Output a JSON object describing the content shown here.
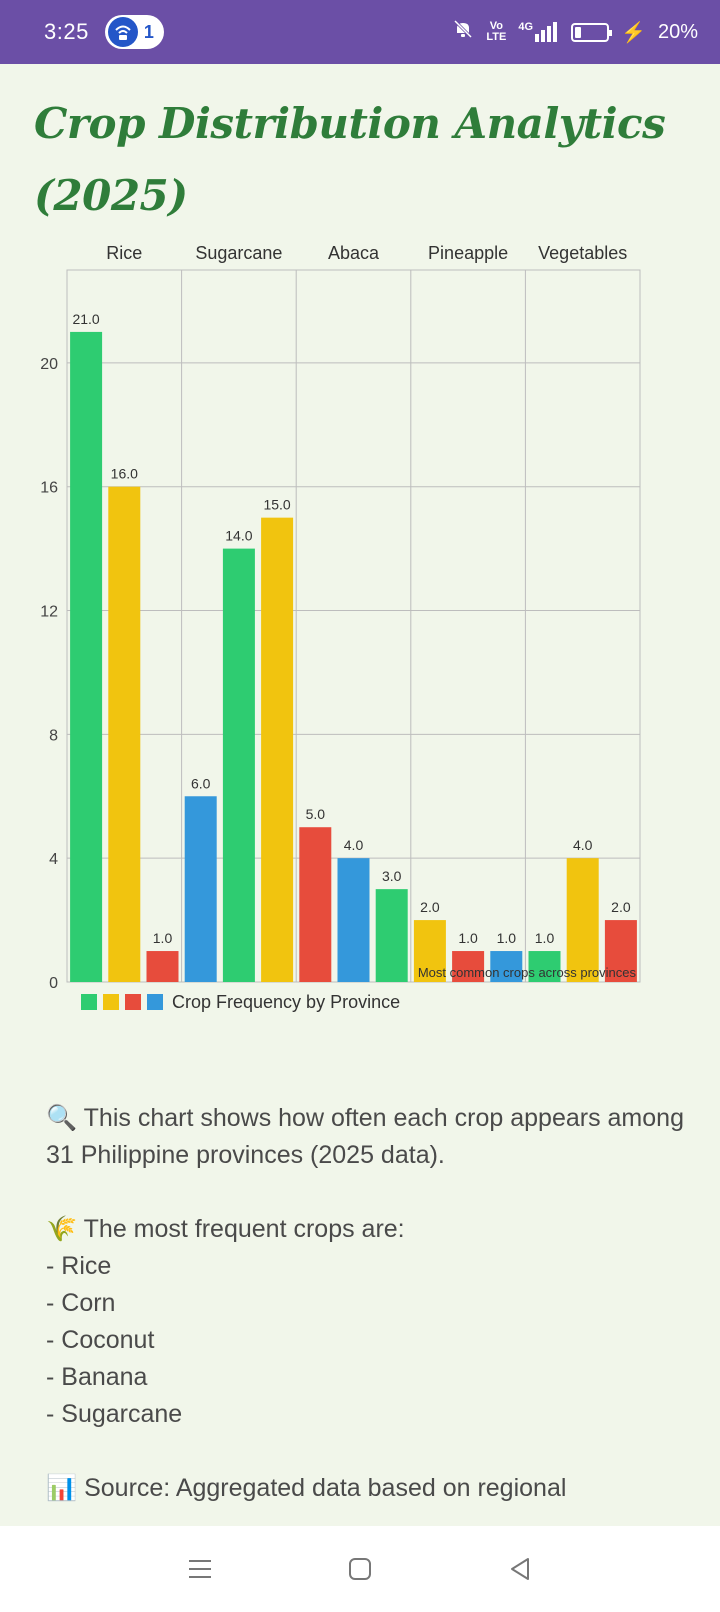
{
  "status_bar": {
    "time": "3:25",
    "badge_count": "1",
    "network_label_top": "Vo",
    "network_label_bottom": "LTE",
    "signal_label": "4G",
    "battery_percent": "20%",
    "battery_level": 0.2
  },
  "page": {
    "title": "Crop Distribution Analytics (2025)"
  },
  "chart_data": {
    "type": "bar",
    "top_labels": [
      "Rice",
      "Sugarcane",
      "Abaca",
      "Pineapple",
      "Vegetables"
    ],
    "values": [
      21.0,
      16.0,
      1.0,
      6.0,
      14.0,
      15.0,
      5.0,
      4.0,
      3.0,
      2.0,
      1.0,
      1.0,
      1.0,
      4.0,
      2.0
    ],
    "value_labels": [
      "21.0",
      "16.0",
      "1.0",
      "6.0",
      "14.0",
      "15.0",
      "5.0",
      "4.0",
      "3.0",
      "2.0",
      "1.0",
      "1.0",
      "1.0",
      "4.0",
      "2.0"
    ],
    "bar_colors": [
      "#2ecc71",
      "#f1c40f",
      "#e74c3c",
      "#3498db"
    ],
    "y_ticks": [
      "0",
      "4",
      "8",
      "12",
      "16",
      "20"
    ],
    "ylim": [
      0,
      23
    ],
    "grid": true,
    "legend": {
      "label": "Crop Frequency by Province",
      "placement": "bottom-left",
      "swatches": [
        "#2ecc71",
        "#f1c40f",
        "#e74c3c",
        "#3498db"
      ]
    },
    "annotation": "Most common crops across provinces"
  },
  "description": {
    "intro_icon": "magnifier-icon",
    "intro": "This chart shows how often each crop appears among 31 Philippine provinces (2025 data).",
    "frequent_icon": "rice-sheaf-icon",
    "frequent_heading": "The most frequent crops are:",
    "frequent_items": [
      "- Rice",
      "- Corn",
      "- Coconut",
      "- Banana",
      "- Sugarcane"
    ],
    "source_icon": "bar-chart-icon",
    "source_text": "Source: Aggregated data based on regional"
  },
  "nav_bar": {
    "buttons": [
      "menu-icon",
      "home-icon",
      "back-icon"
    ]
  }
}
